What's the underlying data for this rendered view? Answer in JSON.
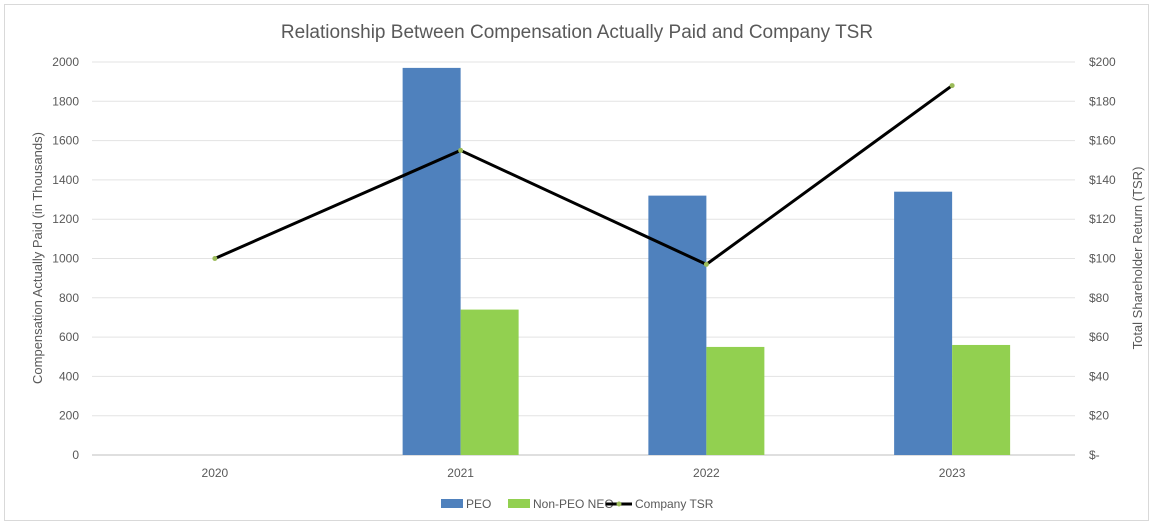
{
  "chart_data": {
    "type": "bar",
    "title": "Relationship Between Compensation Actually Paid and Company TSR",
    "categories": [
      "2020",
      "2021",
      "2022",
      "2023"
    ],
    "ylabel": "Compensation Actually Paid (in Thousands)",
    "y2label": "Total Shareholder Return (TSR)",
    "ylim": [
      0,
      2000
    ],
    "y2lim": [
      0,
      200
    ],
    "yticks": [
      "0",
      "200",
      "400",
      "600",
      "800",
      "1000",
      "1200",
      "1400",
      "1600",
      "1800",
      "2000"
    ],
    "y2ticks": [
      "$-",
      "$20",
      "$40",
      "$60",
      "$80",
      "$100",
      "$120",
      "$140",
      "$160",
      "$180",
      "$200"
    ],
    "grid": true,
    "legend_position": "bottom",
    "series": [
      {
        "name": "PEO",
        "kind": "bar",
        "axis": "left",
        "color": "#4f81bd",
        "values": [
          null,
          1970,
          1320,
          1340
        ]
      },
      {
        "name": "Non-PEO NEO",
        "kind": "bar",
        "axis": "left",
        "color": "#92d050",
        "values": [
          null,
          740,
          550,
          560
        ]
      },
      {
        "name": "Company TSR",
        "kind": "line",
        "axis": "right",
        "color": "#000000",
        "marker_color": "#9bbb59",
        "values": [
          100,
          155,
          97,
          188
        ]
      }
    ]
  }
}
